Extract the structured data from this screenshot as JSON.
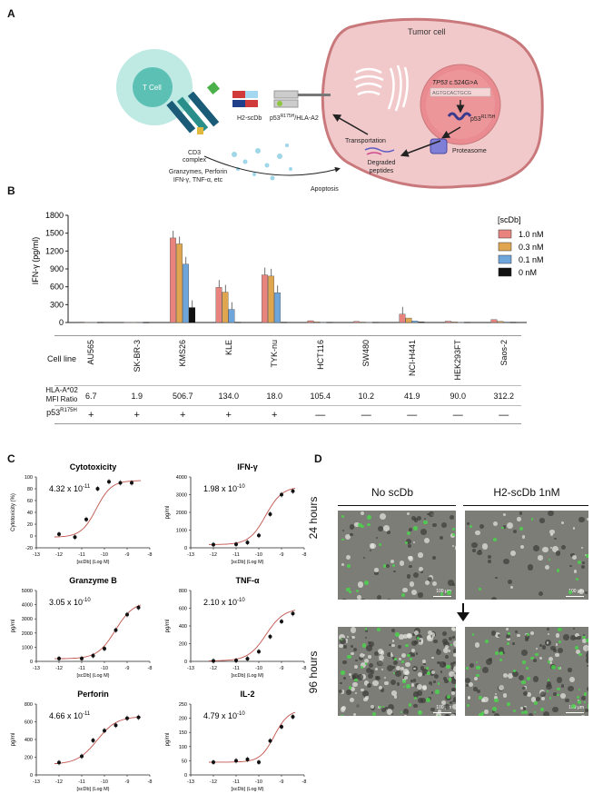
{
  "panels": {
    "A": "A",
    "B": "B",
    "C": "C",
    "D": "D"
  },
  "panel_a": {
    "tumor_cell": "Tumor cell",
    "t_cell": "T Cell",
    "cd3": [
      "CD3",
      "complex"
    ],
    "h2_scdb": "H2-scDb",
    "p53_hla_main": "p53",
    "p53_hla_sup": "R175H",
    "p53_hla_tail": "/HLA-A2",
    "tp53_italic": "TP53",
    "tp53_rest": " c.524G>A",
    "dna_seq": "AGTGCACTGCG",
    "p53_mut_main": "p53",
    "p53_mut_sup": "R175H",
    "proteasome": "Proteasome",
    "transportation": "Transportation",
    "degraded": [
      "Degraded",
      "peptides"
    ],
    "granzymes": [
      "Granzymes, Perforin",
      "IFN-γ, TNF-α, etc"
    ],
    "apoptosis": "Apoptosis"
  },
  "panel_b": {
    "ylabel": "IFN-γ (pg/ml)",
    "legend_title": "[scDb]",
    "row_cell_line": "Cell line",
    "row_hla": [
      "HLA-A*02",
      "MFI Ratio"
    ],
    "row_p53_main": "p53",
    "row_p53_sup": "R175H",
    "mfi": [
      "6.7",
      "1.9",
      "506.7",
      "134.0",
      "18.0",
      "105.4",
      "10.2",
      "41.9",
      "90.0",
      "312.2"
    ],
    "p53_status": [
      "+",
      "+",
      "+",
      "+",
      "+",
      "—",
      "—",
      "—",
      "—",
      "—"
    ]
  },
  "panel_c_titles": [
    {
      "title": "Cytotoxicity",
      "ec50": "4.32 x 10",
      "exp": "-11"
    },
    {
      "title": "IFN-γ",
      "ec50": "1.98 x 10",
      "exp": "-10"
    },
    {
      "title": "Granzyme B",
      "ec50": "3.05 x 10",
      "exp": "-10"
    },
    {
      "title": "TNF-α",
      "ec50": "2.10 x 10",
      "exp": "-10"
    },
    {
      "title": "Perforin",
      "ec50": "4.66 x 10",
      "exp": "-11"
    },
    {
      "title": "IL-2",
      "ec50": "4.79 x 10",
      "exp": "-10"
    }
  ],
  "panel_d": {
    "col_left": "No scDb",
    "col_right": "H2-scDb 1nM",
    "row_top": "24 hours",
    "row_bottom": "96 hours",
    "scale": "100 μm"
  },
  "colors": {
    "c10": "#e8837e",
    "c03": "#e0a54f",
    "c01": "#6ea6dc",
    "c00": "#111111",
    "fit": "#c0524c",
    "tumor": "#f2c9ca",
    "tcell": "#b9e6e1"
  },
  "chart_data": [
    {
      "type": "bar",
      "categories": [
        "AU565",
        "SK-BR-3",
        "KMS26",
        "KLE",
        "TYK-nu",
        "HCT116",
        "SW480",
        "NCI-H441",
        "HEK293FT",
        "Saos-2"
      ],
      "ylabel": "IFN-γ (pg/ml)",
      "ylim": [
        0,
        1800
      ],
      "yticks": [
        0,
        300,
        600,
        900,
        1200,
        1500,
        1800
      ],
      "legend": "right",
      "series": [
        {
          "name": "1.0 nM",
          "values": [
            8,
            4,
            1420,
            590,
            800,
            30,
            18,
            140,
            22,
            50
          ]
        },
        {
          "name": "0.3 nM",
          "values": [
            5,
            3,
            1320,
            510,
            780,
            12,
            8,
            75,
            10,
            20
          ]
        },
        {
          "name": "0.1 nM",
          "values": [
            4,
            2,
            980,
            220,
            500,
            6,
            5,
            25,
            5,
            8
          ]
        },
        {
          "name": "0 nM",
          "values": [
            3,
            2,
            250,
            5,
            5,
            4,
            3,
            8,
            4,
            5
          ]
        }
      ]
    },
    {
      "type": "scatter",
      "title": "Cytotoxicity",
      "ylabel": "Cytotoxicity (%)",
      "xlabel": "[scDb] (Log M)",
      "xlim": [
        -13,
        -8
      ],
      "ylim": [
        -20,
        100
      ],
      "yticks": [
        -20,
        0,
        20,
        40,
        60,
        80,
        100
      ],
      "x": [
        -12,
        -11.3,
        -10.8,
        -10.3,
        -9.8,
        -9.3,
        -8.8
      ],
      "y": [
        3,
        -2,
        28,
        80,
        92,
        90,
        90
      ],
      "fit": {
        "bottom": -2,
        "top": 94,
        "ec50_log": -10.36,
        "hill": 1.3
      }
    },
    {
      "type": "scatter",
      "title": "IFN-γ",
      "ylabel": "pg/ml",
      "xlabel": "[scDb] (Log M)",
      "xlim": [
        -13,
        -8
      ],
      "ylim": [
        0,
        4000
      ],
      "yticks": [
        0,
        1000,
        2000,
        3000,
        4000
      ],
      "x": [
        -12,
        -11,
        -10.5,
        -10,
        -9.5,
        -9,
        -8.5
      ],
      "y": [
        180,
        200,
        300,
        700,
        1900,
        3000,
        3200
      ],
      "fit": {
        "bottom": 180,
        "top": 3450,
        "ec50_log": -9.7,
        "hill": 1.2
      }
    },
    {
      "type": "scatter",
      "title": "Granzyme B",
      "ylabel": "pg/ml",
      "xlabel": "[scDb] (Log M)",
      "xlim": [
        -13,
        -8
      ],
      "ylim": [
        0,
        5000
      ],
      "yticks": [
        0,
        1000,
        2000,
        3000,
        4000,
        5000
      ],
      "x": [
        -12,
        -11,
        -10.5,
        -10,
        -9.5,
        -9,
        -8.5
      ],
      "y": [
        200,
        200,
        400,
        900,
        2200,
        3300,
        3800
      ],
      "fit": {
        "bottom": 180,
        "top": 4200,
        "ec50_log": -9.52,
        "hill": 1.1
      }
    },
    {
      "type": "scatter",
      "title": "TNF-α",
      "ylabel": "pg/ml",
      "xlabel": "[scDb] (Log M)",
      "xlim": [
        -13,
        -8
      ],
      "ylim": [
        0,
        800
      ],
      "yticks": [
        0,
        200,
        400,
        600,
        800
      ],
      "x": [
        -12,
        -11,
        -10.5,
        -10,
        -9.5,
        -9,
        -8.5
      ],
      "y": [
        5,
        10,
        30,
        110,
        280,
        450,
        540
      ],
      "fit": {
        "bottom": 5,
        "top": 600,
        "ec50_log": -9.68,
        "hill": 1.1
      }
    },
    {
      "type": "scatter",
      "title": "Perforin",
      "ylabel": "pg/ml",
      "xlabel": "[scDb] (Log M)",
      "xlim": [
        -13,
        -8
      ],
      "ylim": [
        0,
        800
      ],
      "yticks": [
        0,
        200,
        400,
        600,
        800
      ],
      "x": [
        -12,
        -11,
        -10.5,
        -10,
        -9.5,
        -9,
        -8.5
      ],
      "y": [
        140,
        210,
        390,
        500,
        560,
        640,
        650
      ],
      "fit": {
        "bottom": 120,
        "top": 660,
        "ec50_log": -10.33,
        "hill": 1.0
      }
    },
    {
      "type": "scatter",
      "title": "IL-2",
      "ylabel": "pg/ml",
      "xlabel": "[scDb] (Log M)",
      "xlim": [
        -13,
        -8
      ],
      "ylim": [
        0,
        250
      ],
      "yticks": [
        0,
        50,
        100,
        150,
        200,
        250
      ],
      "x": [
        -12,
        -11,
        -10.5,
        -10,
        -9.5,
        -9,
        -8.5
      ],
      "y": [
        45,
        50,
        55,
        45,
        120,
        170,
        205
      ],
      "fit": {
        "bottom": 45,
        "top": 230,
        "ec50_log": -9.32,
        "hill": 1.4
      }
    }
  ]
}
